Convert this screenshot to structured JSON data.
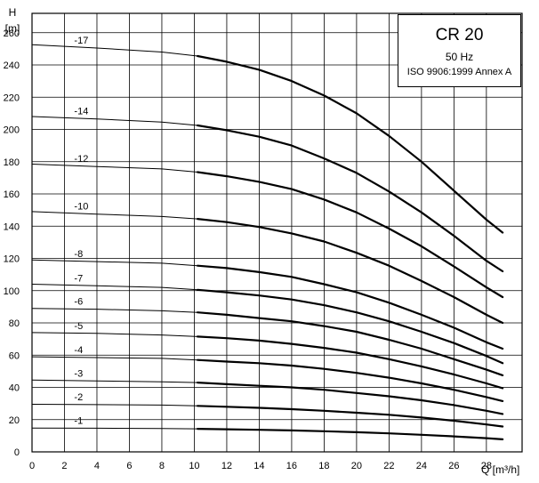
{
  "chart_data": {
    "type": "line",
    "title": "CR 20",
    "subtitle": "50 Hz",
    "standard": "ISO 9906:1999 Annex A",
    "ylabel": "H",
    "yunit": "[m]",
    "xlabel": "Q [m³/h]",
    "xlim": [
      0,
      30.2
    ],
    "ylim": [
      0,
      272
    ],
    "xticks": [
      "0",
      "2",
      "4",
      "6",
      "8",
      "10",
      "12",
      "14",
      "16",
      "18",
      "20",
      "22",
      "24",
      "26",
      "28"
    ],
    "yticks": [
      "0",
      "20",
      "40",
      "60",
      "80",
      "100",
      "120",
      "140",
      "160",
      "180",
      "200",
      "220",
      "240",
      "260"
    ],
    "grid": true,
    "legend_position": "top-right",
    "series": [
      {
        "name": "-17",
        "x": [
          0,
          4,
          8,
          10.2,
          12,
          14,
          16,
          18,
          20,
          22,
          24,
          26,
          28,
          29
        ],
        "values": [
          252.5,
          250.5,
          248,
          245.5,
          242,
          237,
          230,
          221,
          210,
          196,
          180,
          162,
          144,
          136
        ]
      },
      {
        "name": "-14",
        "x": [
          0,
          4,
          8,
          10.2,
          12,
          14,
          16,
          18,
          20,
          22,
          24,
          26,
          28,
          29
        ],
        "values": [
          208,
          206.5,
          204.5,
          202.5,
          199.5,
          195.5,
          190,
          182,
          173,
          161.5,
          148.5,
          134,
          118.5,
          112
        ]
      },
      {
        "name": "-12",
        "x": [
          0,
          4,
          8,
          10.2,
          12,
          14,
          16,
          18,
          20,
          22,
          24,
          26,
          28,
          29
        ],
        "values": [
          178.5,
          177,
          175.5,
          173.5,
          171,
          167.5,
          163,
          156.5,
          148.5,
          138.5,
          127.5,
          115,
          102,
          96
        ]
      },
      {
        "name": "-10",
        "x": [
          0,
          4,
          8,
          10.2,
          12,
          14,
          16,
          18,
          20,
          22,
          24,
          26,
          28,
          29
        ],
        "values": [
          149,
          147.5,
          146,
          144.5,
          142.5,
          139.5,
          135.5,
          130.5,
          123.5,
          115.5,
          106,
          96,
          85,
          80
        ]
      },
      {
        "name": "-8",
        "x": [
          0,
          4,
          8,
          10.2,
          12,
          14,
          16,
          18,
          20,
          22,
          24,
          26,
          28,
          29
        ],
        "values": [
          119,
          118,
          117,
          115.5,
          114,
          111.5,
          108.5,
          104,
          99,
          92.5,
          85,
          77,
          68,
          64
        ]
      },
      {
        "name": "-7",
        "x": [
          0,
          4,
          8,
          10.2,
          12,
          14,
          16,
          18,
          20,
          22,
          24,
          26,
          28,
          29
        ],
        "values": [
          104,
          103,
          102,
          100.5,
          99,
          97,
          94.5,
          91,
          86.5,
          81,
          74.5,
          67.5,
          59.5,
          55
        ]
      },
      {
        "name": "-6",
        "x": [
          0,
          4,
          8,
          10.2,
          12,
          14,
          16,
          18,
          20,
          22,
          24,
          26,
          28,
          29
        ],
        "values": [
          89,
          88.5,
          87.5,
          86.5,
          85,
          83,
          81,
          78,
          74.5,
          69.5,
          64,
          57.5,
          51,
          47.5
        ]
      },
      {
        "name": "-5",
        "x": [
          0,
          4,
          8,
          10.2,
          12,
          14,
          16,
          18,
          20,
          22,
          24,
          26,
          28,
          29
        ],
        "values": [
          74,
          73.5,
          72.5,
          71.5,
          70.5,
          69,
          67,
          64.5,
          61.5,
          57.5,
          53,
          48,
          42.5,
          39.5
        ]
      },
      {
        "name": "-4",
        "x": [
          0,
          4,
          8,
          10.2,
          12,
          14,
          16,
          18,
          20,
          22,
          24,
          26,
          28,
          29
        ],
        "values": [
          59,
          58.5,
          58,
          57,
          56,
          55,
          53.5,
          51.5,
          49,
          46,
          42.5,
          38.5,
          34,
          31.5
        ]
      },
      {
        "name": "-3",
        "x": [
          0,
          4,
          8,
          10.2,
          12,
          14,
          16,
          18,
          20,
          22,
          24,
          26,
          28,
          29
        ],
        "values": [
          44.5,
          44,
          43.5,
          43,
          42,
          41,
          40,
          38.5,
          36.5,
          34.5,
          32,
          29,
          25.5,
          23.5
        ]
      },
      {
        "name": "-2",
        "x": [
          0,
          4,
          8,
          10.2,
          12,
          14,
          16,
          18,
          20,
          22,
          24,
          26,
          28,
          29
        ],
        "values": [
          29.5,
          29.3,
          29,
          28.5,
          28,
          27.3,
          26.5,
          25.5,
          24.3,
          23,
          21.3,
          19.3,
          17,
          15.7
        ]
      },
      {
        "name": "-1",
        "x": [
          0,
          4,
          8,
          10.2,
          12,
          14,
          16,
          18,
          20,
          22,
          24,
          26,
          28,
          29
        ],
        "values": [
          14.8,
          14.7,
          14.5,
          14.3,
          14,
          13.7,
          13.3,
          12.8,
          12.2,
          11.5,
          10.6,
          9.6,
          8.5,
          7.8
        ]
      }
    ]
  }
}
